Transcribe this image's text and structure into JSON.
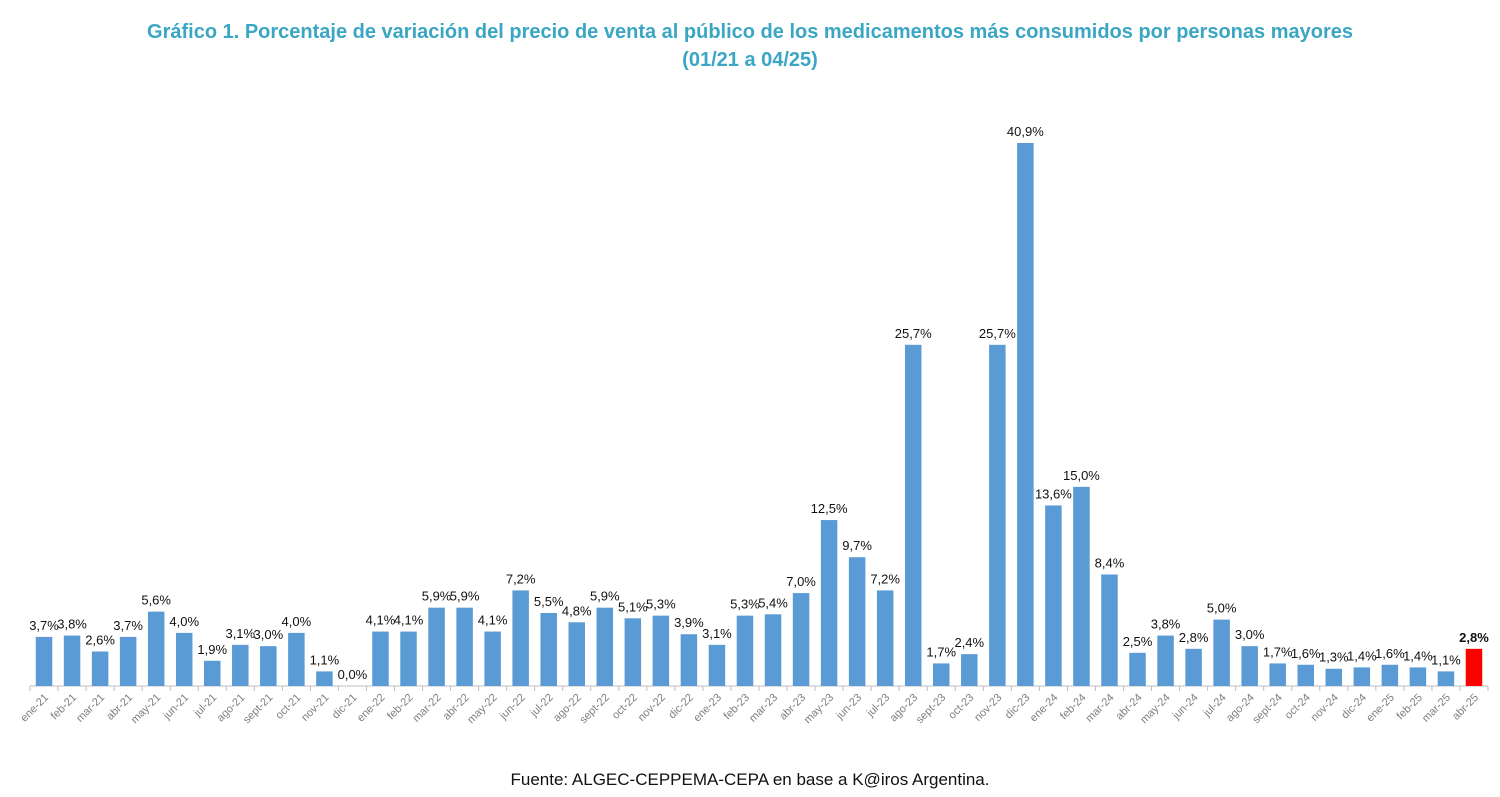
{
  "title_line1": "Gráfico 1. Porcentaje de variación del precio de venta al público de los medicamentos más consumidos por personas mayores",
  "title_line2": "(01/21 a 04/25)",
  "source": "Fuente: ALGEC-CEPPEMA-CEPA en base a K@iros Argentina.",
  "colors": {
    "bar": "#5b9bd5",
    "highlight": "#ff0000",
    "title": "#3aa6c4"
  },
  "chart_data": {
    "type": "bar",
    "title": "Gráfico 1. Porcentaje de variación del precio de venta al público de los medicamentos más consumidos por personas mayores (01/21 a 04/25)",
    "categories": [
      "ene-21",
      "feb-21",
      "mar-21",
      "abr-21",
      "may-21",
      "jun-21",
      "jul-21",
      "ago-21",
      "sept-21",
      "oct-21",
      "nov-21",
      "dic-21",
      "ene-22",
      "feb-22",
      "mar-22",
      "abr-22",
      "may-22",
      "jun-22",
      "jul-22",
      "ago-22",
      "sept-22",
      "oct-22",
      "nov-22",
      "dic-22",
      "ene-23",
      "feb-23",
      "mar-23",
      "abr-23",
      "may-23",
      "jun-23",
      "jul-23",
      "ago-23",
      "sept-23",
      "oct-23",
      "nov-23",
      "dic-23",
      "ene-24",
      "feb-24",
      "mar-24",
      "abr-24",
      "may-24",
      "jun-24",
      "jul-24",
      "ago-24",
      "sept-24",
      "oct-24",
      "nov-24",
      "dic-24",
      "ene-25",
      "feb-25",
      "mar-25",
      "abr-25"
    ],
    "values": [
      3.7,
      3.8,
      2.6,
      3.7,
      5.6,
      4.0,
      1.9,
      3.1,
      3.0,
      4.0,
      1.1,
      0.0,
      4.1,
      4.1,
      5.9,
      5.9,
      4.1,
      7.2,
      5.5,
      4.8,
      5.9,
      5.1,
      5.3,
      3.9,
      3.1,
      5.3,
      5.4,
      7.0,
      12.5,
      9.7,
      7.2,
      25.7,
      1.7,
      2.4,
      25.7,
      40.9,
      13.6,
      15.0,
      8.4,
      2.5,
      3.8,
      2.8,
      5.0,
      3.0,
      1.7,
      1.6,
      1.3,
      1.4,
      1.6,
      1.4,
      1.1,
      2.8
    ],
    "labels": [
      "3,7%",
      "3,8%",
      "2,6%",
      "3,7%",
      "5,6%",
      "4,0%",
      "1,9%",
      "3,1%",
      "3,0%",
      "4,0%",
      "1,1%",
      "0,0%",
      "4,1%",
      "4,1%",
      "5,9%",
      "5,9%",
      "4,1%",
      "7,2%",
      "5,5%",
      "4,8%",
      "5,9%",
      "5,1%",
      "5,3%",
      "3,9%",
      "3,1%",
      "5,3%",
      "5,4%",
      "7,0%",
      "12,5%",
      "9,7%",
      "7,2%",
      "25,7%",
      "1,7%",
      "2,4%",
      "25,7%",
      "40,9%",
      "13,6%",
      "15,0%",
      "8,4%",
      "2,5%",
      "3,8%",
      "2,8%",
      "5,0%",
      "3,0%",
      "1,7%",
      "1,6%",
      "1,3%",
      "1,4%",
      "1,6%",
      "1,4%",
      "1,1%",
      "2,8%"
    ],
    "highlight_index": 51,
    "ylim": [
      0,
      41
    ],
    "grid": false,
    "legend": "none",
    "xlabel": "",
    "ylabel": ""
  }
}
